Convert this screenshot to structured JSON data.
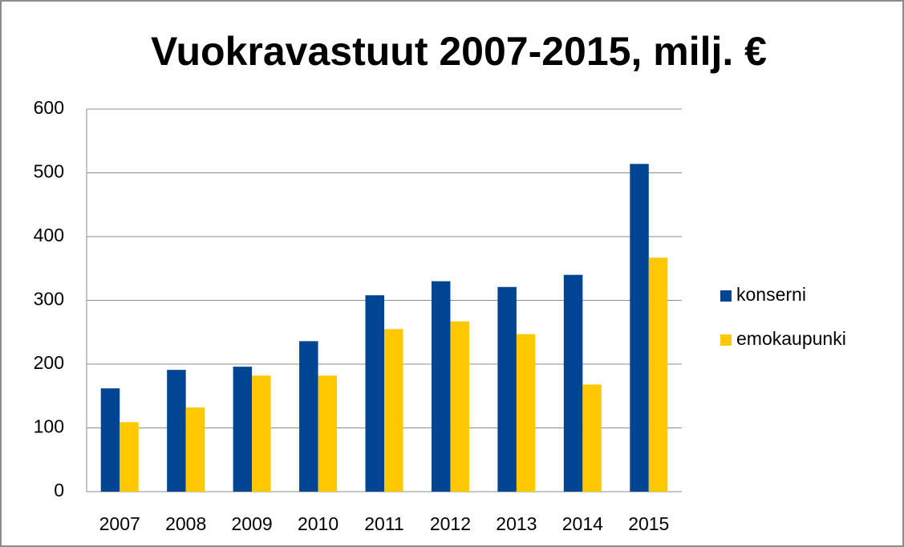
{
  "chart_data": {
    "type": "bar",
    "title": "Vuokravastuut 2007-2015, milj. €",
    "categories": [
      "2007",
      "2008",
      "2009",
      "2010",
      "2011",
      "2012",
      "2013",
      "2014",
      "2015"
    ],
    "series": [
      {
        "name": "konserni",
        "color": "#004494",
        "values": [
          162,
          191,
          196,
          236,
          308,
          330,
          321,
          340,
          514
        ]
      },
      {
        "name": "emokaupunki",
        "color": "#ffc800",
        "values": [
          109,
          132,
          182,
          182,
          255,
          267,
          247,
          168,
          367
        ]
      }
    ],
    "ylim": [
      0,
      600
    ],
    "yticks": [
      0,
      100,
      200,
      300,
      400,
      500,
      600
    ],
    "grid": true,
    "legend": "right"
  }
}
